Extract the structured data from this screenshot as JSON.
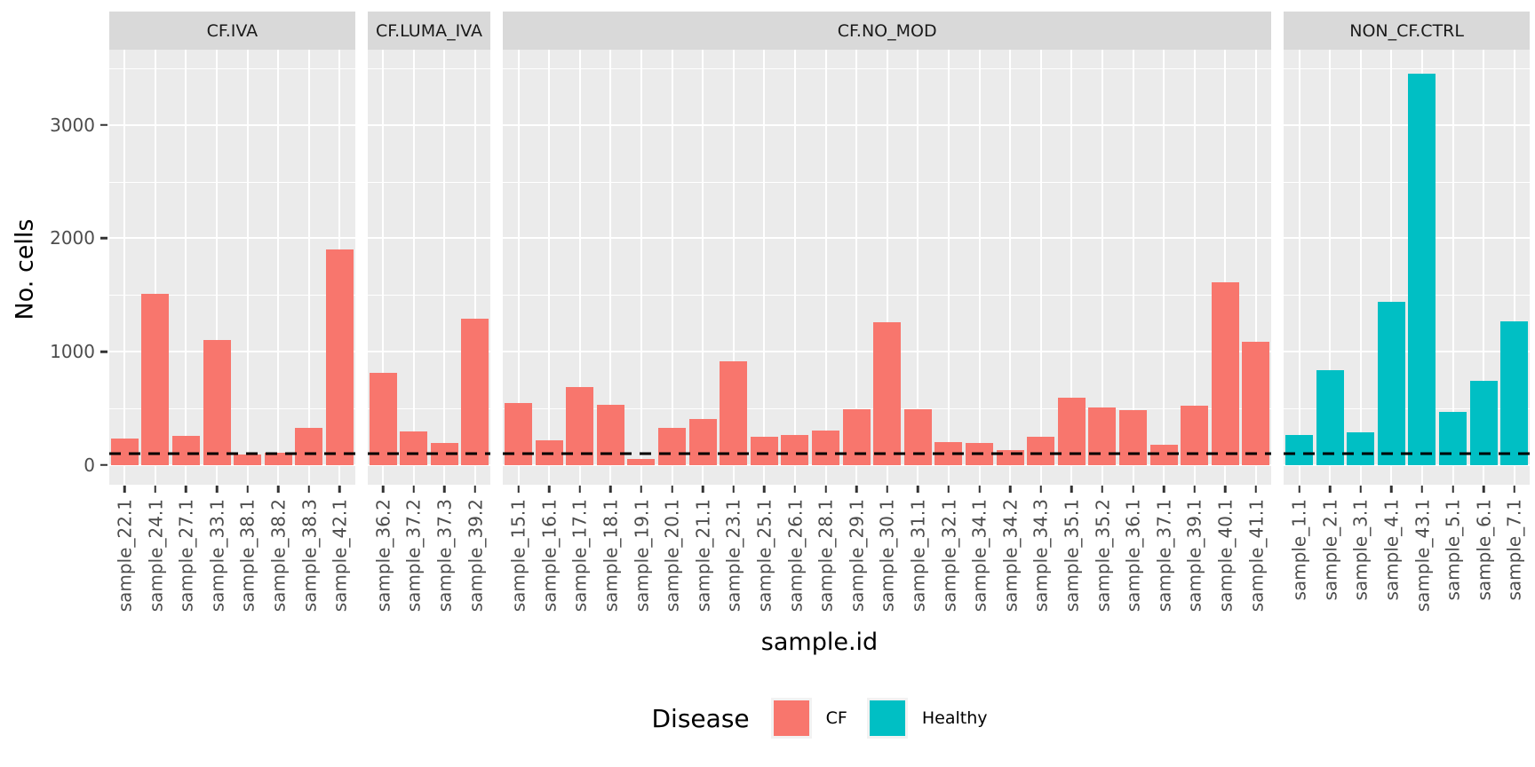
{
  "chart_data": {
    "type": "bar",
    "faceted": true,
    "title": "",
    "xlabel": "sample.id",
    "ylabel": "No. cells",
    "grid": true,
    "y_scale": {
      "min": -175,
      "max": 3665
    },
    "y_ticks": [
      {
        "value": 0,
        "label": "0"
      },
      {
        "value": 1000,
        "label": "1000"
      },
      {
        "value": 2000,
        "label": "2000"
      },
      {
        "value": 3000,
        "label": "3000"
      }
    ],
    "y_minor": [
      500,
      1500,
      2500,
      3500
    ],
    "reference_line": {
      "value": 100,
      "style": "dashed",
      "color": "#000000"
    },
    "series_colors": {
      "CF": "#F8766D",
      "Healthy": "#00BFC4"
    },
    "legend": {
      "title": "Disease",
      "position": "bottom",
      "entries": [
        {
          "label": "CF",
          "color": "#F8766D"
        },
        {
          "label": "Healthy",
          "color": "#00BFC4"
        }
      ]
    },
    "facets": [
      {
        "label": "CF.IVA",
        "group": "CF",
        "categories": [
          "sample_22.1",
          "sample_24.1",
          "sample_27.1",
          "sample_33.1",
          "sample_38.1",
          "sample_38.2",
          "sample_38.3",
          "sample_42.1"
        ],
        "values": [
          230,
          1510,
          255,
          1100,
          95,
          105,
          330,
          1900
        ]
      },
      {
        "label": "CF.LUMA_IVA",
        "group": "CF",
        "categories": [
          "sample_36.2",
          "sample_37.2",
          "sample_37.3",
          "sample_39.2"
        ],
        "values": [
          815,
          295,
          195,
          1290
        ]
      },
      {
        "label": "CF.NO_MOD",
        "group": "CF",
        "categories": [
          "sample_15.1",
          "sample_16.1",
          "sample_17.1",
          "sample_18.1",
          "sample_19.1",
          "sample_20.1",
          "sample_21.1",
          "sample_23.1",
          "sample_25.1",
          "sample_26.1",
          "sample_28.1",
          "sample_29.1",
          "sample_30.1",
          "sample_31.1",
          "sample_32.1",
          "sample_34.1",
          "sample_34.2",
          "sample_34.3",
          "sample_35.1",
          "sample_35.2",
          "sample_36.1",
          "sample_37.1",
          "sample_39.1",
          "sample_40.1",
          "sample_41.1"
        ],
        "values": [
          545,
          220,
          690,
          530,
          55,
          325,
          405,
          915,
          245,
          265,
          305,
          490,
          1260,
          490,
          200,
          195,
          130,
          250,
          590,
          505,
          485,
          180,
          520,
          1615,
          1090
        ]
      },
      {
        "label": "NON_CF.CTRL",
        "group": "Healthy",
        "categories": [
          "sample_1.1",
          "sample_2.1",
          "sample_3.1",
          "sample_4.1",
          "sample_43.1",
          "sample_5.1",
          "sample_6.1",
          "sample_7.1"
        ],
        "values": [
          265,
          835,
          285,
          1440,
          3450,
          465,
          740,
          1270
        ]
      }
    ],
    "style": {
      "panel_bg": "#EBEBEB",
      "strip_bg": "#D9D9D9",
      "grid_color": "#FFFFFF",
      "axis_text_color": "#4D4D4D",
      "tick_color": "#333333"
    }
  }
}
